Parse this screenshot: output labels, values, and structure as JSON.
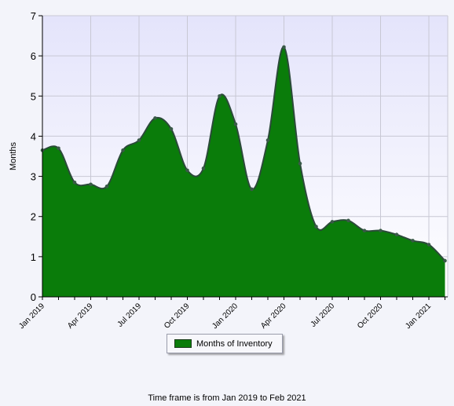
{
  "chart_data": {
    "type": "area",
    "title": "",
    "xlabel": "",
    "ylabel": "Months",
    "ylim": [
      0,
      7
    ],
    "y_ticks": [
      0,
      1,
      2,
      3,
      4,
      5,
      6,
      7
    ],
    "x_tick_labels": [
      "Jan 2019",
      "Apr 2019",
      "Jul 2019",
      "Oct 2019",
      "Jan 2020",
      "Apr 2020",
      "Jul 2020",
      "Oct 2020",
      "Jan 2021"
    ],
    "x": [
      "Jan 2019",
      "Feb 2019",
      "Mar 2019",
      "Apr 2019",
      "May 2019",
      "Jun 2019",
      "Jul 2019",
      "Aug 2019",
      "Sep 2019",
      "Oct 2019",
      "Nov 2019",
      "Dec 2019",
      "Jan 2020",
      "Feb 2020",
      "Mar 2020",
      "Apr 2020",
      "May 2020",
      "Jun 2020",
      "Jul 2020",
      "Aug 2020",
      "Sep 2020",
      "Oct 2020",
      "Nov 2020",
      "Dec 2020",
      "Jan 2021",
      "Feb 2021"
    ],
    "grid": true,
    "legend_position": "bottom-center",
    "series": [
      {
        "name": "Months of Inventory",
        "color": "#0a7c0a",
        "line_color": "#2c4a3a",
        "values": [
          3.65,
          3.7,
          2.85,
          2.8,
          2.75,
          3.65,
          3.9,
          4.45,
          4.18,
          3.15,
          3.2,
          5.0,
          4.3,
          2.68,
          3.9,
          6.22,
          3.32,
          1.75,
          1.87,
          1.9,
          1.65,
          1.65,
          1.55,
          1.4,
          1.3,
          0.9
        ]
      }
    ]
  },
  "legend": {
    "label": "Months of Inventory"
  },
  "footer": {
    "text": "Time frame is from Jan 2019 to Feb 2021"
  }
}
